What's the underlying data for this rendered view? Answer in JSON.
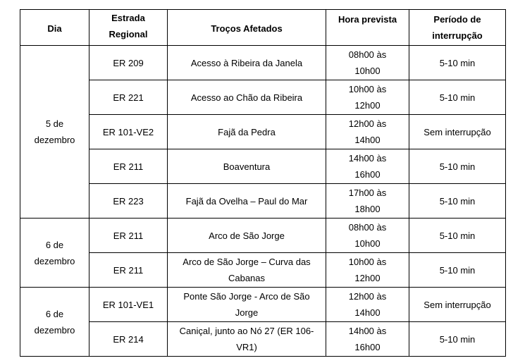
{
  "headers": [
    "Dia",
    "Estrada Regional",
    "Troços Afetados",
    "Hora prevista",
    "Período de interrupção"
  ],
  "groups": [
    {
      "dia": "5 de dezembro",
      "rows": [
        [
          "ER 209",
          "Acesso à Ribeira da Janela",
          "08h00 às 10h00",
          "5-10 min"
        ],
        [
          "ER 221",
          "Acesso ao Chão da Ribeira",
          "10h00 às 12h00",
          "5-10 min"
        ],
        [
          "ER 101-VE2",
          "Fajã da Pedra",
          "12h00 às 14h00",
          "Sem interrupção"
        ],
        [
          "ER 211",
          "Boaventura",
          "14h00 às 16h00",
          "5-10 min"
        ],
        [
          "ER 223",
          "Fajã da Ovelha – Paul do Mar",
          "17h00 às 18h00",
          "5-10 min"
        ]
      ]
    },
    {
      "dia": "6 de dezembro",
      "rows": [
        [
          "ER 211",
          "Arco de São Jorge",
          "08h00 às 10h00",
          "5-10 min"
        ],
        [
          "ER 211",
          "Arco de São Jorge – Curva das Cabanas",
          "10h00 às 12h00",
          "5-10 min"
        ]
      ]
    },
    {
      "dia": "6 de dezembro",
      "rows": [
        [
          "ER 101-VE1",
          "Ponte São Jorge - Arco de São Jorge",
          "12h00 às 14h00",
          "Sem interrupção"
        ],
        [
          "ER 214",
          "Caniçal, junto ao Nó 27 (ER 106-VR1)",
          "14h00 às 16h00",
          "5-10 min"
        ]
      ]
    }
  ]
}
